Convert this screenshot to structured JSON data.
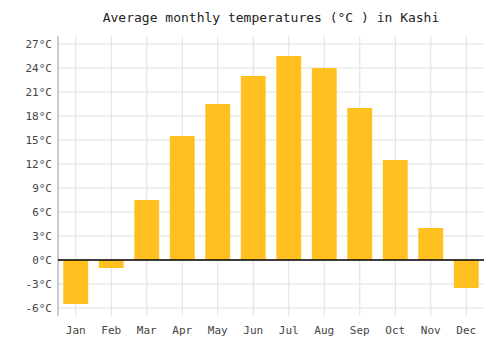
{
  "chart_data": {
    "type": "bar",
    "title": "Average monthly temperatures (°C ) in Kashi",
    "categories": [
      "Jan",
      "Feb",
      "Mar",
      "Apr",
      "May",
      "Jun",
      "Jul",
      "Aug",
      "Sep",
      "Oct",
      "Nov",
      "Dec"
    ],
    "values": [
      -5.5,
      -1.0,
      7.5,
      15.5,
      19.5,
      23.0,
      25.5,
      24.0,
      19.0,
      12.5,
      4.0,
      -3.5
    ],
    "color": "#FFC020",
    "ylim": [
      -7,
      28
    ],
    "yticks": [
      {
        "value": -6,
        "label": "-6°C"
      },
      {
        "value": -3,
        "label": "-3°C"
      },
      {
        "value": 0,
        "label": "0°C"
      },
      {
        "value": 3,
        "label": "3°C"
      },
      {
        "value": 6,
        "label": "6°C"
      },
      {
        "value": 9,
        "label": "9°C"
      },
      {
        "value": 12,
        "label": "12°C"
      },
      {
        "value": 15,
        "label": "15°C"
      },
      {
        "value": 18,
        "label": "18°C"
      },
      {
        "value": 21,
        "label": "21°C"
      },
      {
        "value": 24,
        "label": "24°C"
      },
      {
        "value": 27,
        "label": "27°C"
      }
    ],
    "grid": true
  }
}
